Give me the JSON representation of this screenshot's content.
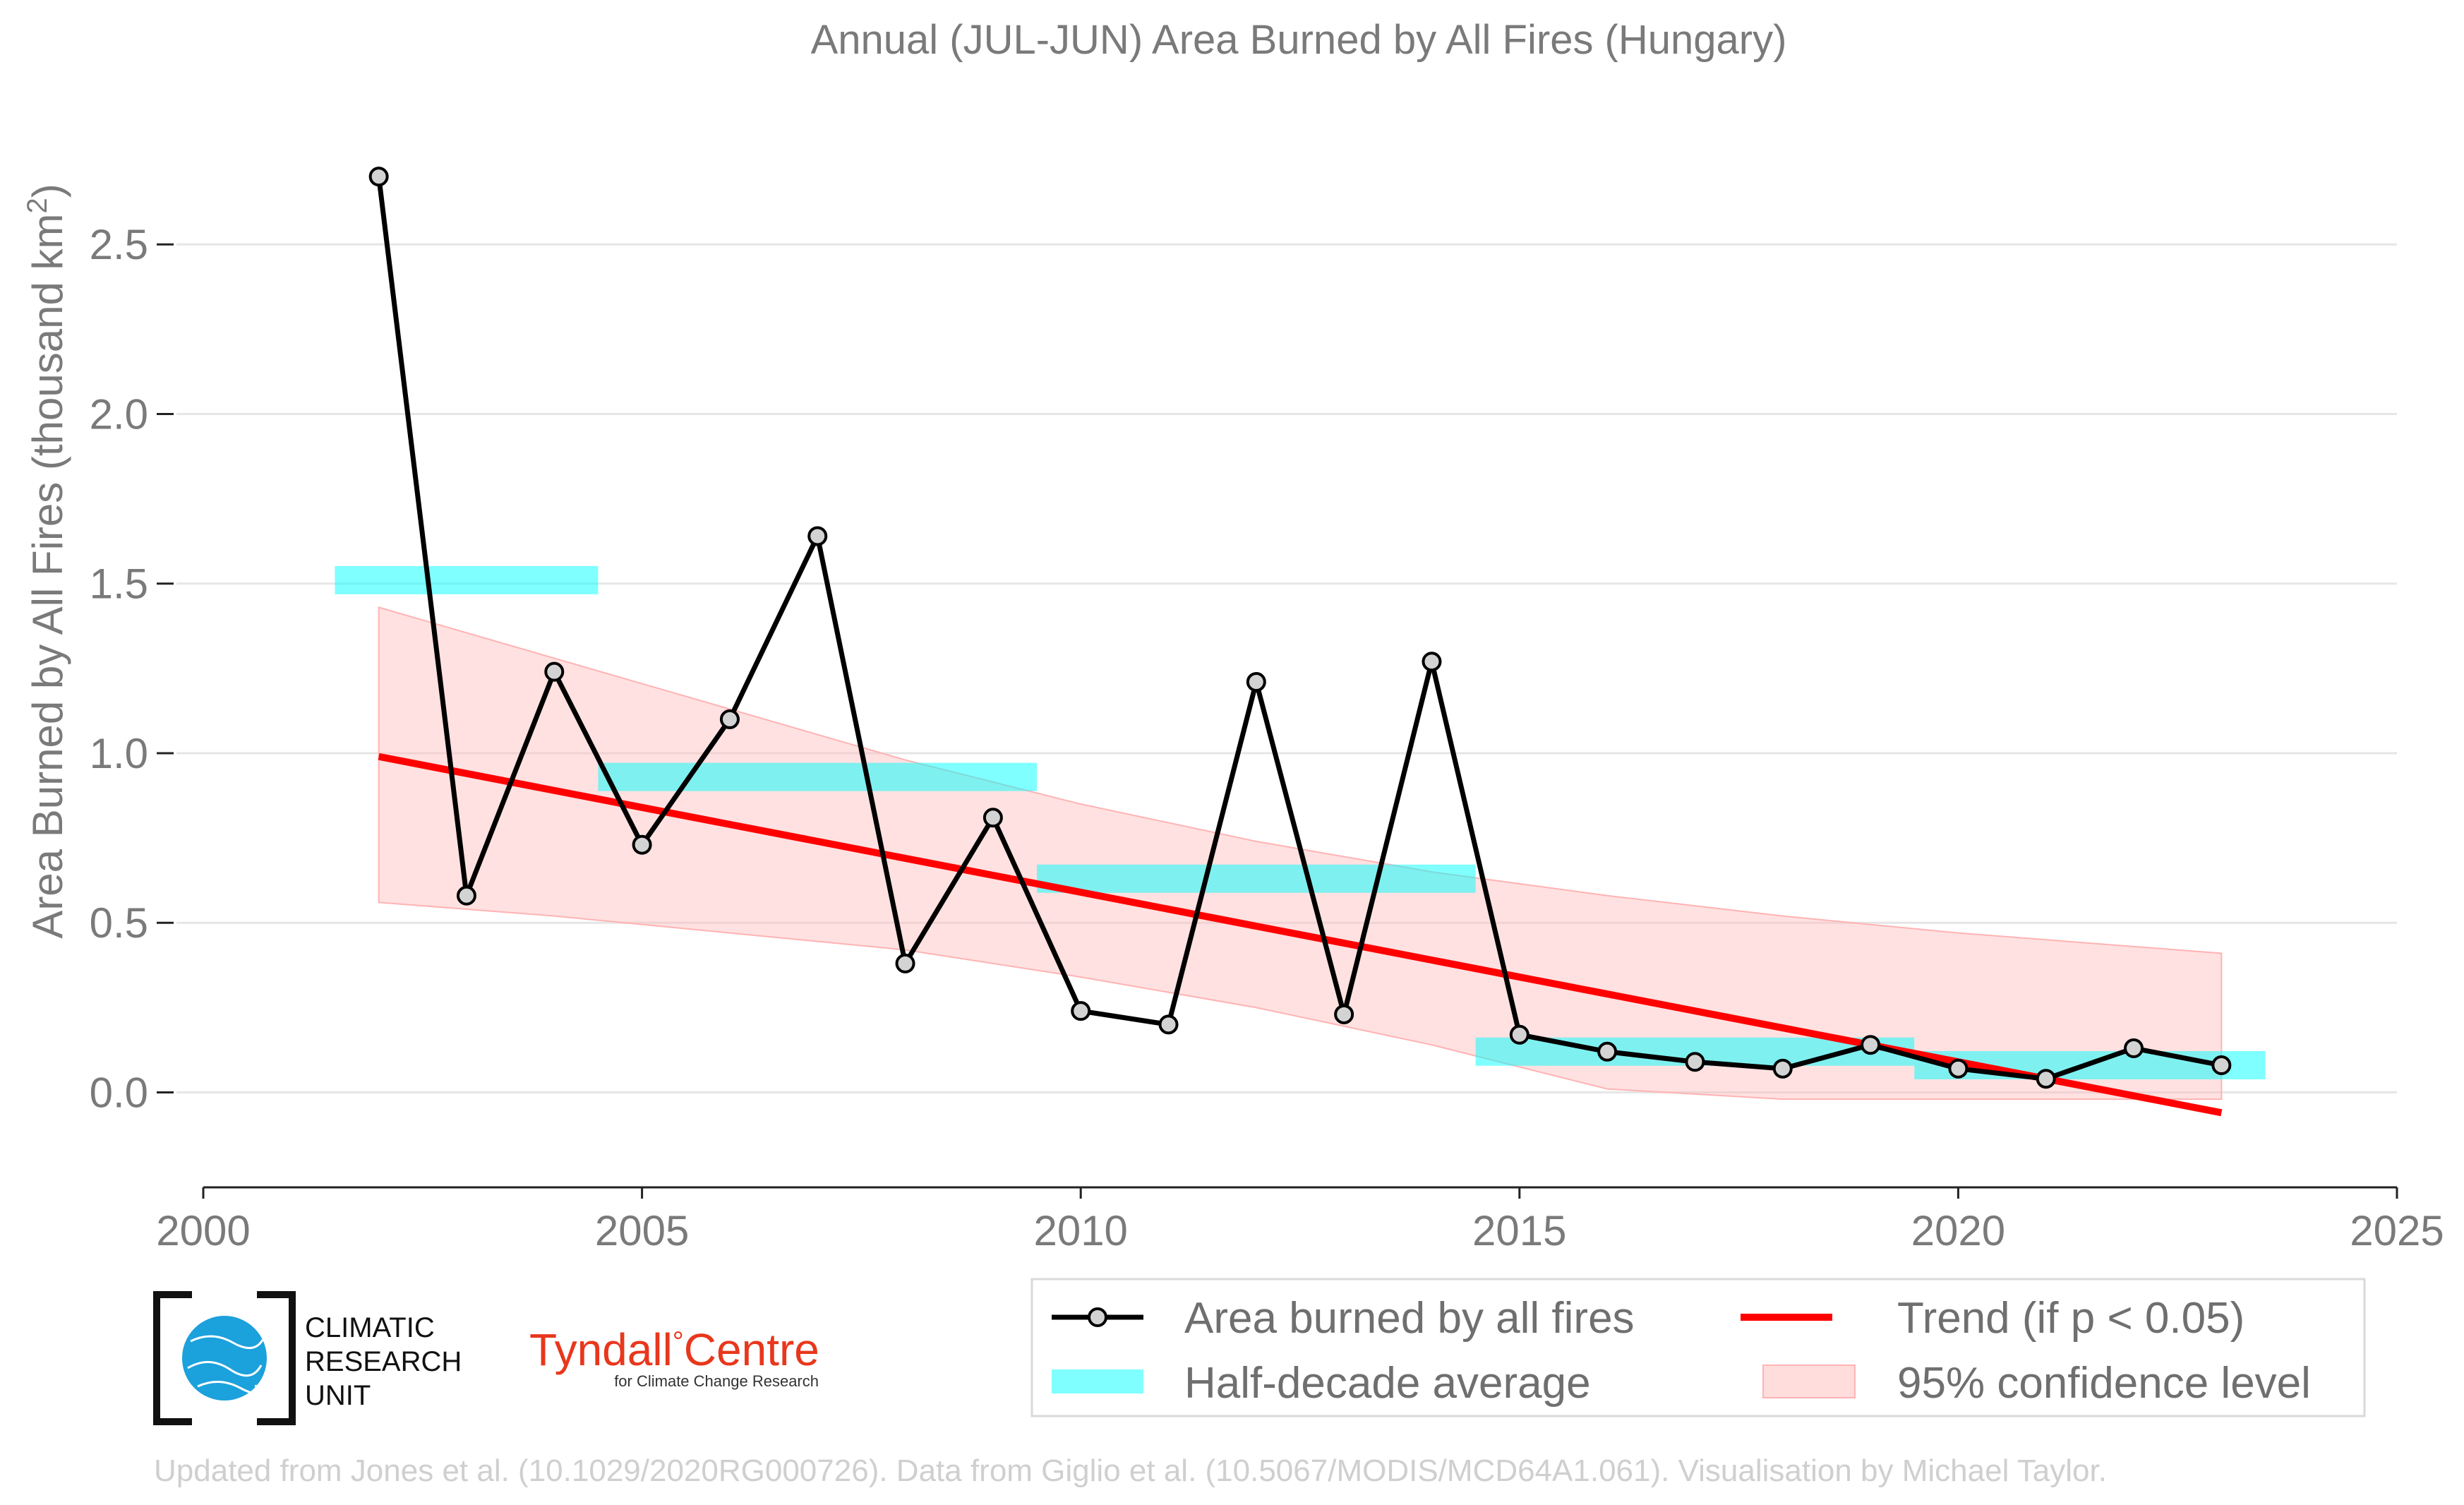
{
  "chart_data": {
    "type": "line",
    "title": "Annual (JUL-JUN) Area Burned by All Fires (Hungary)",
    "ylabel_main": "Area Burned by All Fires (thousand km",
    "ylabel_sup": "2",
    "ylabel_close": ")",
    "xlabel": "",
    "xlim": [
      2000,
      2025
    ],
    "ylim": [
      -0.28,
      2.95
    ],
    "x_ticks": [
      2000,
      2005,
      2010,
      2015,
      2020,
      2025
    ],
    "y_ticks": [
      0.0,
      0.5,
      1.0,
      1.5,
      2.0,
      2.5
    ],
    "y_tick_labels": [
      "0.0",
      "0.5",
      "1.0",
      "1.5",
      "2.0",
      "2.5"
    ],
    "grid": true,
    "series": [
      {
        "name": "Area burned by all fires",
        "x": [
          2002,
          2003,
          2004,
          2005,
          2006,
          2007,
          2008,
          2009,
          2010,
          2011,
          2012,
          2013,
          2014,
          2015,
          2016,
          2017,
          2018,
          2019,
          2020,
          2021,
          2022,
          2023
        ],
        "values": [
          2.7,
          0.58,
          1.24,
          0.73,
          1.1,
          1.64,
          0.38,
          0.81,
          0.24,
          0.2,
          1.21,
          0.23,
          1.27,
          0.17,
          0.12,
          0.09,
          0.07,
          0.14,
          0.07,
          0.04,
          0.13,
          0.08
        ],
        "color": "#000000",
        "marker_fill": "#d3d3d3"
      }
    ],
    "half_decade_average": {
      "name": "Half-decade average",
      "color": "#00ffff",
      "segments": [
        {
          "x_start": 2001.5,
          "x_end": 2004.5,
          "value": 1.51
        },
        {
          "x_start": 2004.5,
          "x_end": 2009.5,
          "value": 0.93
        },
        {
          "x_start": 2009.5,
          "x_end": 2014.5,
          "value": 0.63
        },
        {
          "x_start": 2014.5,
          "x_end": 2019.5,
          "value": 0.12
        },
        {
          "x_start": 2019.5,
          "x_end": 2023.5,
          "value": 0.08
        }
      ]
    },
    "trend": {
      "name": "Trend (if p < 0.05)",
      "color": "#ff0000",
      "x": [
        2002,
        2023
      ],
      "values": [
        0.99,
        -0.06
      ]
    },
    "confidence_band": {
      "name": "95% confidence level",
      "color": "#ffb3b3",
      "x": [
        2002,
        2004,
        2006,
        2008,
        2010,
        2012,
        2014,
        2016,
        2018,
        2020,
        2023
      ],
      "upper": [
        1.43,
        1.28,
        1.13,
        0.98,
        0.85,
        0.74,
        0.65,
        0.58,
        0.52,
        0.47,
        0.41
      ],
      "lower": [
        0.56,
        0.52,
        0.47,
        0.42,
        0.34,
        0.25,
        0.14,
        0.01,
        -0.02,
        -0.02,
        -0.02
      ]
    }
  },
  "legend": {
    "items": [
      "Area burned by all fires",
      "Trend (if p < 0.05)",
      "Half-decade average",
      "95% confidence level"
    ]
  },
  "logos": {
    "cru_line1": "CLIMATIC",
    "cru_line2": "RESEARCH",
    "cru_line3": "UNIT",
    "tyndall_name": "Tyndall",
    "tyndall_degree": "°",
    "tyndall_centre": "Centre",
    "tyndall_sub": "for Climate Change Research"
  },
  "credit": "Updated from Jones et al. (10.1029/2020RG000726). Data from Giglio et al. (10.5067/MODIS/MCD64A1.061). Visualisation by Michael Taylor.",
  "colors": {
    "text_gray": "#7a7a7a",
    "grid": "#e6e6e6",
    "axis": "#222222"
  }
}
